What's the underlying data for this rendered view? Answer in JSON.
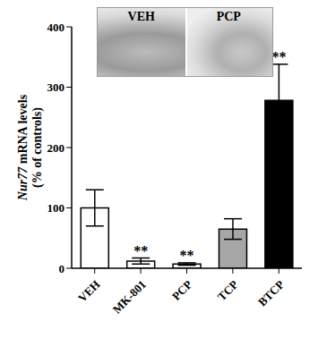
{
  "chart_data": {
    "type": "bar",
    "y_label": [
      "Nur77 mRNA levels",
      "(% of controls)"
    ],
    "categories": [
      "VEH",
      "MK-801",
      "PCP",
      "TCP",
      "BTCP"
    ],
    "values": [
      100,
      12,
      7,
      65,
      278
    ],
    "errors": [
      30,
      5,
      2,
      17,
      60
    ],
    "significance": [
      null,
      "**",
      "**",
      null,
      "**"
    ],
    "colors": [
      "#ffffff",
      "#ffffff",
      "#ffffff",
      "#a6a6a6",
      "#000000"
    ],
    "ylim": [
      0,
      400
    ],
    "yticks": [
      0,
      100,
      200,
      300,
      400
    ],
    "grid": false,
    "inset": {
      "labels": [
        "VEH",
        "PCP"
      ]
    }
  }
}
